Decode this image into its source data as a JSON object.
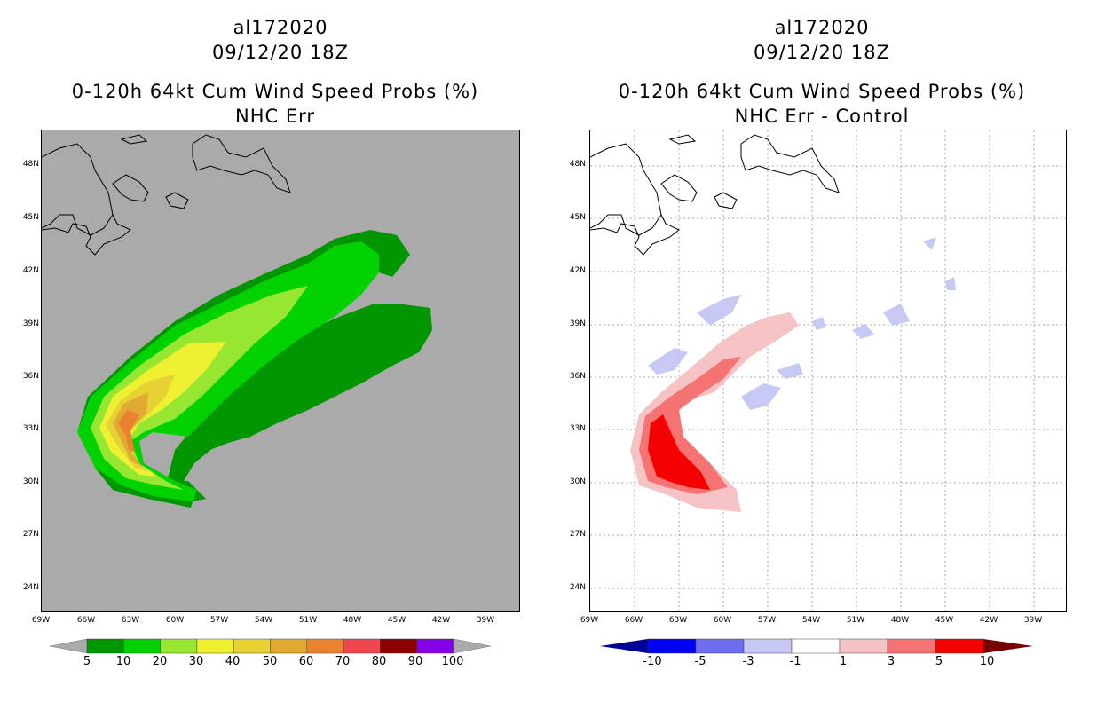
{
  "left_panel": {
    "storm_id": "al172020",
    "datetime": "09/12/20 18Z",
    "product": "0-120h 64kt Cum Wind Speed Probs (%)",
    "subtitle": "NHC Err",
    "background_color": "#aaaaaa",
    "colorbar": {
      "colors": [
        "#009600",
        "#00d200",
        "#96e632",
        "#f0f032",
        "#e6d232",
        "#e1aa32",
        "#eb8232",
        "#f04650",
        "#8c0000",
        "#8200e6"
      ],
      "labels": [
        "5",
        "10",
        "20",
        "30",
        "40",
        "50",
        "60",
        "70",
        "80",
        "90",
        "100"
      ]
    }
  },
  "right_panel": {
    "storm_id": "al172020",
    "datetime": "09/12/20 18Z",
    "product": "0-120h 64kt Cum Wind Speed Probs (%)",
    "subtitle": "NHC Err - Control",
    "background_color": "#ffffff",
    "colorbar": {
      "colors": [
        "#000096",
        "#0000f5",
        "#6e6ef0",
        "#c8c8f5",
        "#ffffff",
        "#f5c3c3",
        "#f57373",
        "#f50000",
        "#780000"
      ],
      "labels": [
        "-10",
        "-5",
        "-3",
        "-1",
        "1",
        "3",
        "5",
        "10"
      ]
    }
  },
  "axes": {
    "lat_labels": [
      "48N",
      "45N",
      "42N",
      "39N",
      "36N",
      "33N",
      "30N",
      "27N",
      "24N"
    ],
    "lon_labels": [
      "69W",
      "66W",
      "63W",
      "60W",
      "57W",
      "54W",
      "51W",
      "48W",
      "45W",
      "42W",
      "39W"
    ]
  }
}
